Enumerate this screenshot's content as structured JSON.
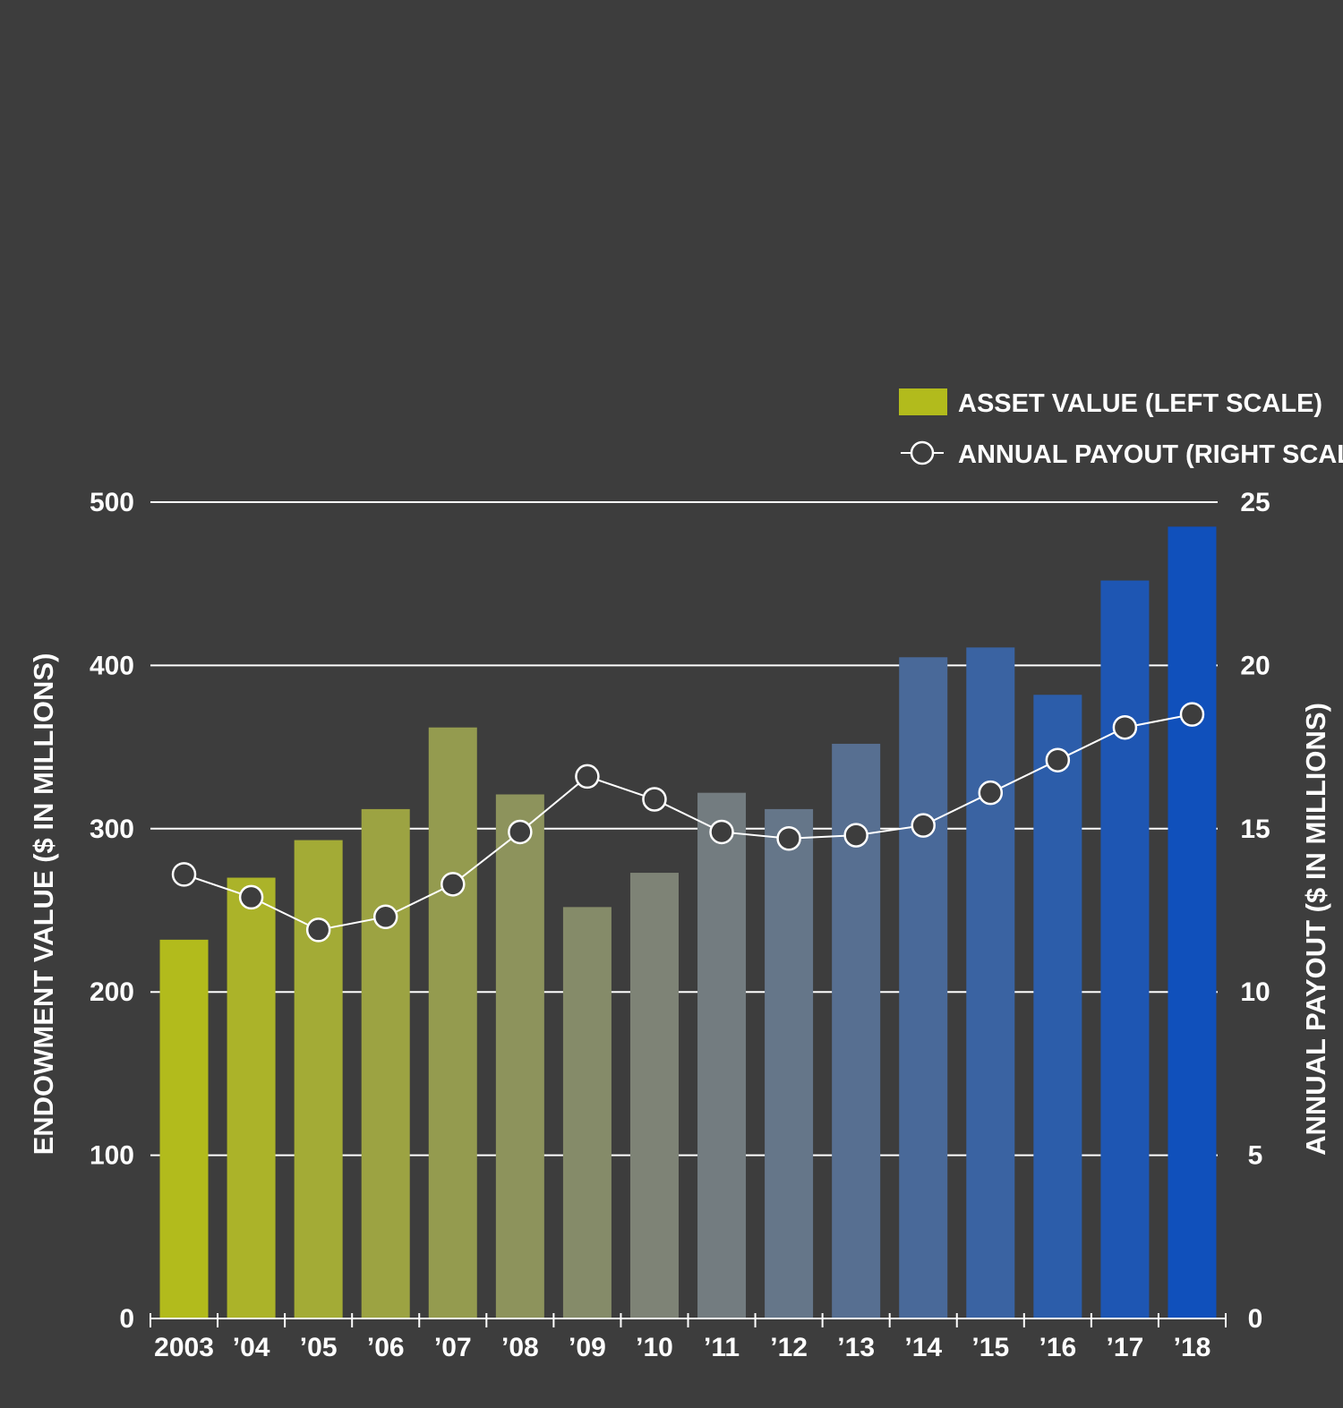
{
  "chart_data": {
    "type": "bar",
    "categories": [
      "2003",
      "’04",
      "’05",
      "’06",
      "’07",
      "’08",
      "’09",
      "’10",
      "’11",
      "’12",
      "’13",
      "’14",
      "’15",
      "’16",
      "’17",
      "’18"
    ],
    "series": [
      {
        "name": "ASSET VALUE (LEFT SCALE)",
        "type": "bar",
        "axis": "left",
        "values": [
          232,
          270,
          293,
          312,
          362,
          321,
          252,
          273,
          322,
          312,
          352,
          405,
          411,
          382,
          452,
          485
        ]
      },
      {
        "name": "ANNUAL PAYOUT (RIGHT SCALE)",
        "type": "line",
        "axis": "right",
        "values": [
          13.6,
          12.9,
          11.9,
          12.3,
          13.3,
          14.9,
          16.6,
          15.9,
          14.9,
          14.7,
          14.8,
          15.1,
          16.1,
          17.1,
          18.1,
          18.5
        ]
      }
    ],
    "ylabel": "ENDOWMENT VALUE  ($ IN MILLIONS)",
    "ylabel_right": "ANNUAL PAYOUT  ($ IN MILLIONS)",
    "ylim": [
      0,
      500
    ],
    "ylim_right": [
      0,
      25
    ],
    "yticks": [
      "0",
      "100",
      "200",
      "300",
      "400",
      "500"
    ],
    "yticks_right": [
      "0",
      "5",
      "10",
      "15",
      "20",
      "25"
    ],
    "grid": true,
    "legend_position": "top-right",
    "colors": {
      "background": "#3d3d3d",
      "bar_start": "#b2bb1c",
      "bar_mid": "#7a7f7c",
      "bar_end": "#1050bb",
      "line": "#ffffff",
      "marker_fill": "#3d3d3d",
      "grid": "#ffffff",
      "legend_swatch": "#b2bb1c"
    }
  }
}
